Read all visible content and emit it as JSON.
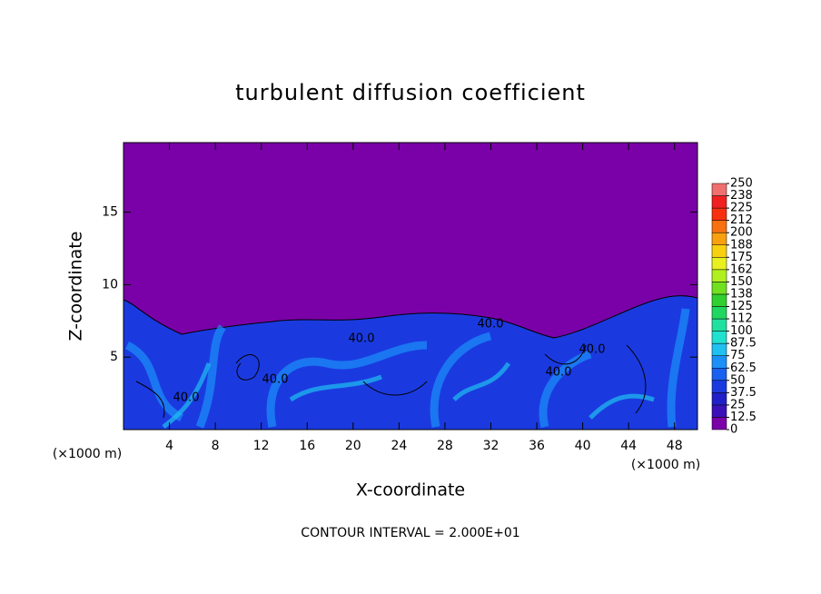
{
  "chart_data": {
    "type": "contour",
    "title": "turbulent diffusion coefficient",
    "xlabel": "X-coordinate",
    "ylabel": "Z-coordinate",
    "y_unit_label": "(×1000 m)",
    "x_unit_label": "(×1000 m)",
    "annotation": "CONTOUR INTERVAL = 2.000E+01",
    "contour_labels": [
      "40.0",
      "40.0",
      "40.0",
      "40.0",
      "40.0",
      "40.0"
    ],
    "xlim": [
      0,
      50
    ],
    "xticks": [
      4,
      8,
      12,
      16,
      20,
      24,
      28,
      32,
      36,
      40,
      44,
      48
    ],
    "ylim": [
      0,
      19.8
    ],
    "yticks": [
      5,
      10,
      15
    ],
    "colorbar_ticks": [
      0,
      12.5,
      25,
      37.5,
      50,
      62.5,
      75,
      87.5,
      100,
      112,
      125,
      138,
      150,
      162,
      175,
      188,
      200,
      212,
      225,
      238,
      250
    ],
    "colorbar_colors": [
      "#7a00a8",
      "#3a10b8",
      "#2020c8",
      "#1a3ae0",
      "#1860f0",
      "#1c90f8",
      "#20c0f0",
      "#20e0d0",
      "#20e0a0",
      "#20d860",
      "#30d030",
      "#70e020",
      "#b0f020",
      "#e8f020",
      "#f8d010",
      "#f8a010",
      "#f87010",
      "#f83010",
      "#f02020",
      "#f07070"
    ]
  }
}
